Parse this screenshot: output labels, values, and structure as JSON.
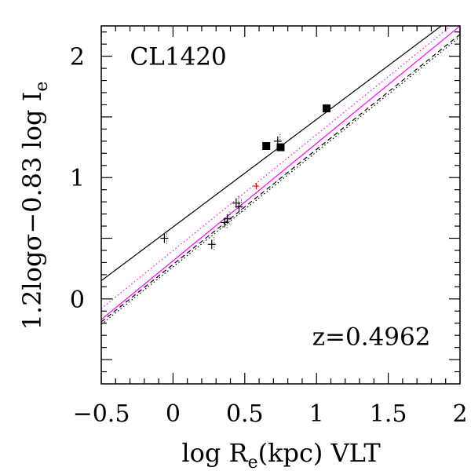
{
  "chart_data": {
    "type": "scatter",
    "title": "",
    "xlabel_prefix": "log R",
    "xlabel_sub": "e",
    "xlabel_suffix": "(kpc) VLT",
    "ylabel_prefix": "1.2logσ−0.83 log I",
    "ylabel_sub": "e",
    "xlim": [
      -0.5,
      2.0
    ],
    "ylim": [
      -0.7,
      2.25
    ],
    "x_ticks": [
      {
        "value": -0.5,
        "label": "−0.5"
      },
      {
        "value": 0,
        "label": "0"
      },
      {
        "value": 0.5,
        "label": "0.5"
      },
      {
        "value": 1.0,
        "label": "1"
      },
      {
        "value": 1.5,
        "label": "1.5"
      },
      {
        "value": 2.0,
        "label": "2"
      }
    ],
    "y_ticks": [
      {
        "value": 0,
        "label": "0"
      },
      {
        "value": 1,
        "label": "1"
      },
      {
        "value": 2,
        "label": "2"
      }
    ],
    "x_minor_step": 0.1,
    "y_minor_step": 0.1,
    "annotations": [
      {
        "text": "CL1420",
        "x": -0.3,
        "y": 1.93
      },
      {
        "text": "z=0.4962",
        "x": 0.97,
        "y": -0.38
      }
    ],
    "lines": [
      {
        "color": "#000000",
        "style": "solid",
        "x": [
          -0.5,
          1.87
        ],
        "y": [
          0.15,
          2.25
        ]
      },
      {
        "color": "#ff00ff",
        "style": "solid",
        "x": [
          -0.5,
          2.0
        ],
        "y": [
          -0.17,
          2.25
        ]
      },
      {
        "color": "#ff00ff",
        "style": "dotted",
        "x": [
          -0.5,
          2.0
        ],
        "y": [
          -0.08,
          2.31
        ]
      },
      {
        "color": "#000000",
        "style": "dashed",
        "x": [
          -0.5,
          2.0
        ],
        "y": [
          -0.19,
          2.18
        ]
      },
      {
        "color": "#000000",
        "style": "dotted",
        "x": [
          -0.5,
          2.0
        ],
        "y": [
          -0.21,
          2.16
        ]
      }
    ],
    "series": [
      {
        "marker": "filled-square",
        "color": "#000000",
        "points": [
          {
            "x": 0.65,
            "y": 1.26
          },
          {
            "x": 0.75,
            "y": 1.25
          },
          {
            "x": 1.07,
            "y": 1.57
          }
        ]
      },
      {
        "marker": "cross-with-errors",
        "color": "#000000",
        "points": [
          {
            "x": -0.06,
            "y": 0.5
          },
          {
            "x": 0.27,
            "y": 0.45
          },
          {
            "x": 0.36,
            "y": 0.63
          },
          {
            "x": 0.38,
            "y": 0.66
          },
          {
            "x": 0.44,
            "y": 0.79
          },
          {
            "x": 0.46,
            "y": 0.76
          },
          {
            "x": 0.73,
            "y": 1.3
          }
        ]
      },
      {
        "marker": "cross",
        "color": "#ff0000",
        "points": [
          {
            "x": 0.58,
            "y": 0.93
          }
        ]
      }
    ]
  }
}
